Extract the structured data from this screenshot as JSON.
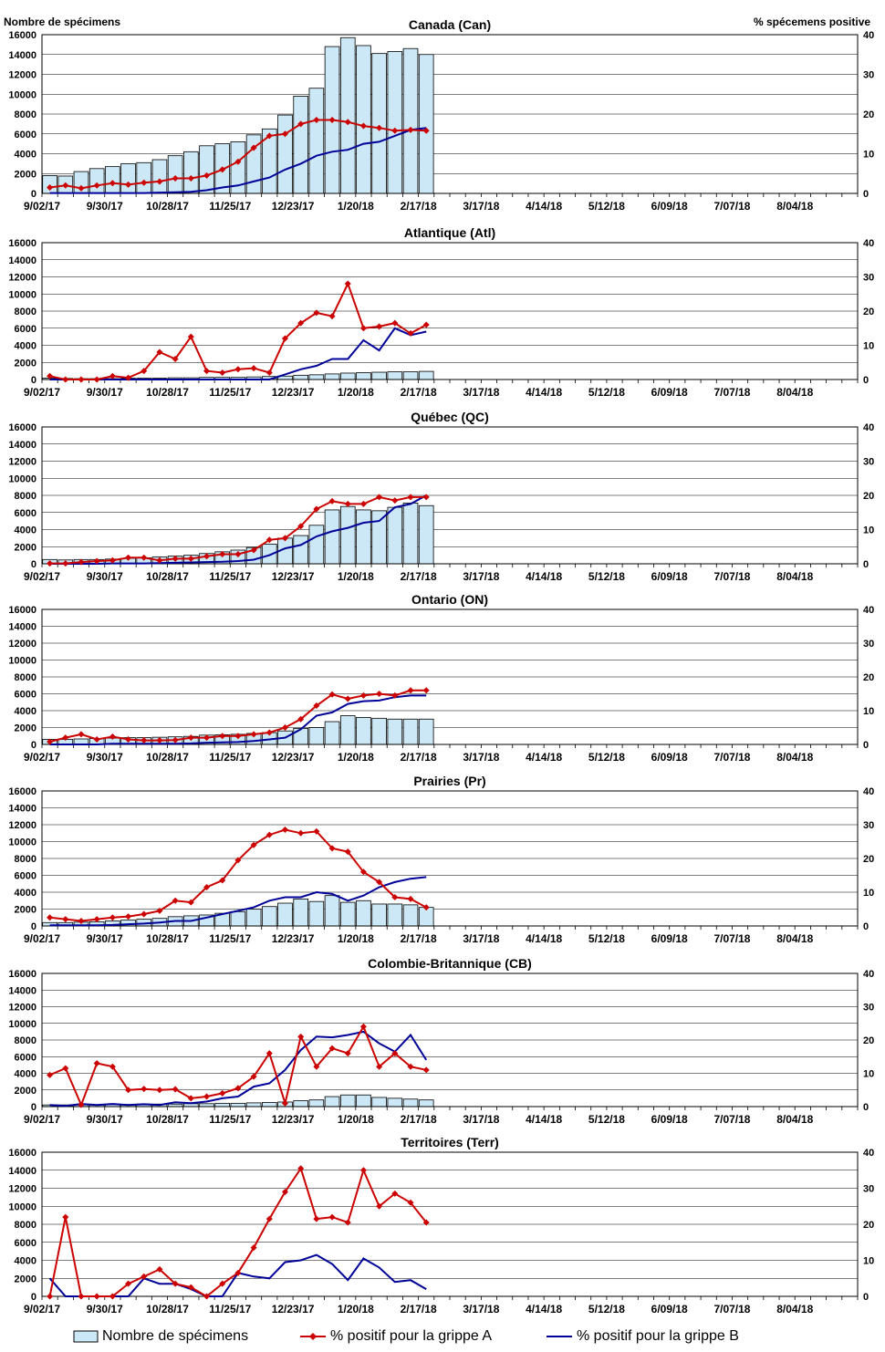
{
  "header": {
    "left_axis_title": "Nombre de spécimens",
    "right_axis_title": "% spécemens positive"
  },
  "legend": {
    "bars": "Nombre de spécimens",
    "flu_a": "% positif pour la grippe A",
    "flu_b": "% positif pour la grippe B"
  },
  "colors": {
    "bar_fill": "#cce8f6",
    "flu_a": "#cc0000",
    "flu_b": "#000099",
    "grid": "#000000"
  },
  "chart_data": [
    {
      "type": "bar",
      "title": "Canada (Can)",
      "x_tick_labels": [
        "9/02/17",
        "9/30/17",
        "10/28/17",
        "11/25/17",
        "12/23/17",
        "1/20/18",
        "2/17/18",
        "3/17/18",
        "4/14/18",
        "5/12/18",
        "6/09/18",
        "7/07/18",
        "8/04/18"
      ],
      "ylim": [
        0,
        16000
      ],
      "y_ticks": [
        0,
        2000,
        4000,
        6000,
        8000,
        10000,
        12000,
        14000,
        16000
      ],
      "y2lim": [
        0,
        40
      ],
      "y2_ticks": [
        0,
        10,
        20,
        30,
        40
      ],
      "grid": true,
      "specimens": [
        1800,
        1750,
        2200,
        2500,
        2700,
        3000,
        3100,
        3400,
        3800,
        4200,
        4800,
        5000,
        5200,
        5900,
        6500,
        7900,
        9800,
        10600,
        14800,
        15700,
        14900,
        14100,
        14300,
        14600,
        14000
      ],
      "flu_a": [
        1.5,
        2,
        1.3,
        2,
        2.6,
        2.2,
        2.7,
        3,
        3.8,
        3.8,
        4.5,
        6,
        8,
        11.5,
        14.5,
        15,
        17.5,
        18.5,
        18.5,
        18,
        17,
        16.5,
        15.8,
        16,
        15.8
      ],
      "flu_b": [
        0.1,
        0.1,
        0.1,
        0.1,
        0.1,
        0.1,
        0.1,
        0.2,
        0.3,
        0.4,
        0.8,
        1.5,
        2,
        3,
        4,
        6,
        7.5,
        9.5,
        10.5,
        11,
        12.5,
        13,
        14.5,
        16,
        16.5
      ]
    },
    {
      "type": "bar",
      "title": "Atlantique (Atl)",
      "x_tick_labels": [
        "9/02/17",
        "9/30/17",
        "10/28/17",
        "11/25/17",
        "12/23/17",
        "1/20/18",
        "2/17/18",
        "3/17/18",
        "4/14/18",
        "5/12/18",
        "6/09/18",
        "7/07/18",
        "8/04/18"
      ],
      "ylim": [
        0,
        16000
      ],
      "y_ticks": [
        0,
        2000,
        4000,
        6000,
        8000,
        10000,
        12000,
        14000,
        16000
      ],
      "y2lim": [
        0,
        40
      ],
      "y2_ticks": [
        0,
        10,
        20,
        30,
        40
      ],
      "grid": true,
      "specimens": [
        150,
        120,
        100,
        100,
        100,
        150,
        150,
        150,
        200,
        200,
        250,
        250,
        250,
        300,
        350,
        400,
        500,
        550,
        650,
        750,
        800,
        850,
        900,
        900,
        950
      ],
      "flu_a": [
        1,
        0,
        0,
        0,
        1,
        0.5,
        2.5,
        8,
        6,
        12.5,
        2.5,
        2,
        3,
        3.3,
        2,
        12,
        16.5,
        19.5,
        18.5,
        28,
        15,
        15.5,
        16.5,
        13.5,
        16
      ],
      "flu_b": [
        0,
        0,
        0,
        0,
        0,
        0,
        0,
        0,
        0,
        0,
        0,
        0,
        0,
        0,
        0,
        1.5,
        3,
        4,
        6,
        6,
        11.5,
        8.5,
        15,
        13,
        14
      ]
    },
    {
      "type": "bar",
      "title": "Québec (QC)",
      "x_tick_labels": [
        "9/02/17",
        "9/30/17",
        "10/28/17",
        "11/25/17",
        "12/23/17",
        "1/20/18",
        "2/17/18",
        "3/17/18",
        "4/14/18",
        "5/12/18",
        "6/09/18",
        "7/07/18",
        "8/04/18"
      ],
      "ylim": [
        0,
        16000
      ],
      "y_ticks": [
        0,
        2000,
        4000,
        6000,
        8000,
        10000,
        12000,
        14000,
        16000
      ],
      "y2lim": [
        0,
        40
      ],
      "y2_ticks": [
        0,
        10,
        20,
        30,
        40
      ],
      "grid": true,
      "specimens": [
        500,
        450,
        500,
        500,
        550,
        650,
        700,
        800,
        900,
        1000,
        1200,
        1400,
        1600,
        1900,
        2300,
        3000,
        3300,
        4500,
        6300,
        6700,
        6300,
        6200,
        6600,
        7100,
        6800
      ],
      "flu_a": [
        0.1,
        0.1,
        0.5,
        0.8,
        1,
        1.8,
        1.8,
        1,
        1.5,
        1.5,
        2.2,
        2.8,
        2.8,
        4,
        7,
        7.5,
        11,
        16,
        18.3,
        17.5,
        17.5,
        19.5,
        18.5,
        19.5,
        19.5
      ],
      "flu_b": [
        0,
        0,
        0,
        0,
        0.1,
        0.1,
        0.1,
        0.2,
        0.3,
        0.4,
        0.5,
        0.6,
        0.8,
        1.2,
        2.5,
        4.5,
        5.5,
        8,
        9.5,
        10.5,
        12,
        12.5,
        16.5,
        17.5,
        20
      ]
    },
    {
      "type": "bar",
      "title": "Ontario (ON)",
      "x_tick_labels": [
        "9/02/17",
        "9/30/17",
        "10/28/17",
        "11/25/17",
        "12/23/17",
        "1/20/18",
        "2/17/18",
        "3/17/18",
        "4/14/18",
        "5/12/18",
        "6/09/18",
        "7/07/18",
        "8/04/18"
      ],
      "ylim": [
        0,
        16000
      ],
      "y_ticks": [
        0,
        2000,
        4000,
        6000,
        8000,
        10000,
        12000,
        14000,
        16000
      ],
      "y2lim": [
        0,
        40
      ],
      "y2_ticks": [
        0,
        10,
        20,
        30,
        40
      ],
      "grid": true,
      "specimens": [
        600,
        600,
        650,
        700,
        750,
        800,
        800,
        850,
        900,
        950,
        1100,
        1150,
        1200,
        1300,
        1400,
        1600,
        1900,
        2000,
        2700,
        3400,
        3200,
        3100,
        3000,
        3000,
        3000
      ],
      "flu_a": [
        0.8,
        2,
        3,
        1.5,
        2.3,
        1.5,
        1.2,
        1.2,
        1.3,
        2,
        2,
        2.5,
        2.5,
        3,
        3.5,
        5,
        7.5,
        11.5,
        14.8,
        13.5,
        14.5,
        15,
        14.5,
        16,
        16
      ],
      "flu_b": [
        0,
        0,
        0,
        0,
        0.2,
        0.2,
        0.2,
        0.2,
        0.2,
        0.3,
        0.5,
        0.6,
        0.7,
        1,
        1.5,
        2,
        4.5,
        8.5,
        9.5,
        12,
        12.8,
        13,
        14,
        14.5,
        14.5
      ]
    },
    {
      "type": "bar",
      "title": "Prairies (Pr)",
      "x_tick_labels": [
        "9/02/17",
        "9/30/17",
        "10/28/17",
        "11/25/17",
        "12/23/17",
        "1/20/18",
        "2/17/18",
        "3/17/18",
        "4/14/18",
        "5/12/18",
        "6/09/18",
        "7/07/18",
        "8/04/18"
      ],
      "ylim": [
        0,
        16000
      ],
      "y_ticks": [
        0,
        2000,
        4000,
        6000,
        8000,
        10000,
        12000,
        14000,
        16000
      ],
      "y2lim": [
        0,
        40
      ],
      "y2_ticks": [
        0,
        10,
        20,
        30,
        40
      ],
      "grid": true,
      "specimens": [
        400,
        400,
        450,
        500,
        600,
        700,
        800,
        900,
        1100,
        1200,
        1300,
        1500,
        1700,
        2000,
        2300,
        2700,
        3200,
        2900,
        3600,
        2800,
        3000,
        2600,
        2600,
        2500,
        2200
      ],
      "flu_a": [
        2.5,
        2,
        1.5,
        2,
        2.5,
        2.8,
        3.5,
        4.5,
        7.5,
        7,
        11.5,
        13.5,
        19.5,
        24,
        27,
        28.5,
        27.5,
        28,
        23,
        22,
        16,
        13,
        8.5,
        8,
        5.5
      ],
      "flu_b": [
        0.2,
        0.2,
        0.2,
        0.2,
        0.3,
        0.5,
        0.7,
        1,
        1.5,
        1.5,
        2.5,
        3.5,
        4.5,
        5.5,
        7.5,
        8.5,
        8.5,
        10,
        9.5,
        7.5,
        9,
        11.5,
        13,
        14,
        14.5
      ]
    },
    {
      "type": "bar",
      "title": "Colombie-Britannique (CB)",
      "x_tick_labels": [
        "9/02/17",
        "9/30/17",
        "10/28/17",
        "11/25/17",
        "12/23/17",
        "1/20/18",
        "2/17/18",
        "3/17/18",
        "4/14/18",
        "5/12/18",
        "6/09/18",
        "7/07/18",
        "8/04/18"
      ],
      "ylim": [
        0,
        16000
      ],
      "y_ticks": [
        0,
        2000,
        4000,
        6000,
        8000,
        10000,
        12000,
        14000,
        16000
      ],
      "y2lim": [
        0,
        40
      ],
      "y2_ticks": [
        0,
        10,
        20,
        30,
        40
      ],
      "grid": true,
      "specimens": [
        200,
        200,
        200,
        200,
        250,
        250,
        300,
        300,
        300,
        350,
        350,
        400,
        400,
        450,
        500,
        550,
        700,
        800,
        1200,
        1400,
        1400,
        1100,
        1000,
        900,
        800
      ],
      "flu_a": [
        9.5,
        11.5,
        0.5,
        13,
        12,
        5,
        5.3,
        5,
        5.2,
        2.5,
        3,
        4,
        5.5,
        9,
        16,
        1,
        21,
        12,
        17.5,
        16,
        24,
        12,
        16,
        12,
        11
      ],
      "flu_b": [
        0.5,
        0.2,
        0.8,
        0.5,
        0.8,
        0.5,
        0.7,
        0.5,
        1.3,
        1,
        1.5,
        2.5,
        3,
        6,
        7,
        11,
        17,
        21,
        20.8,
        21.5,
        22.5,
        19,
        16.5,
        21.5,
        14
      ]
    },
    {
      "type": "line",
      "title": "Territoires (Terr)",
      "x_tick_labels": [
        "9/02/17",
        "9/30/17",
        "10/28/17",
        "11/25/17",
        "12/23/17",
        "1/20/18",
        "2/17/18",
        "3/17/18",
        "4/14/18",
        "5/12/18",
        "6/09/18",
        "7/07/18",
        "8/04/18"
      ],
      "ylim": [
        0,
        16000
      ],
      "y_ticks": [
        0,
        2000,
        4000,
        6000,
        8000,
        10000,
        12000,
        14000,
        16000
      ],
      "y2lim": [
        0,
        40
      ],
      "y2_ticks": [
        0,
        10,
        20,
        30,
        40
      ],
      "grid": true,
      "specimens": [],
      "flu_a": [
        0,
        22,
        0,
        0,
        0,
        3.5,
        5.5,
        7.5,
        3.5,
        2.5,
        0,
        3.5,
        6.5,
        13.5,
        21.5,
        29,
        35.5,
        21.5,
        22,
        20.5,
        35,
        25,
        28.5,
        26,
        20.5
      ],
      "flu_b": [
        5,
        0,
        0,
        0,
        0,
        0,
        5,
        3.5,
        3.5,
        2,
        0,
        0,
        6.5,
        5.5,
        5,
        9.5,
        10,
        11.5,
        9,
        4.5,
        10.5,
        8,
        4,
        4.5,
        2
      ]
    }
  ]
}
